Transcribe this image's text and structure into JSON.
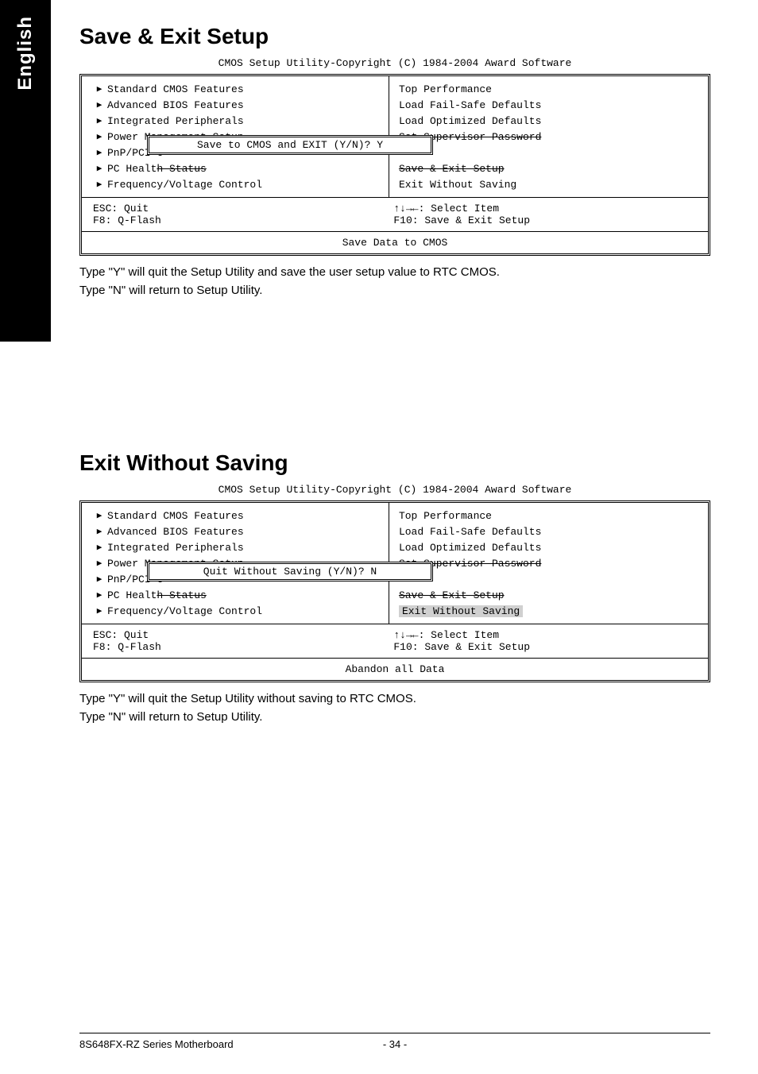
{
  "sidebar": {
    "label": "English"
  },
  "section1": {
    "title": "Save & Exit Setup",
    "bios_header": "CMOS Setup Utility-Copyright (C) 1984-2004 Award Software",
    "left_items": [
      "Standard CMOS Features",
      "Advanced BIOS Features",
      "Integrated Peripherals",
      "Power Management Setup",
      "PnP/PCI C",
      "PC Health Status",
      "Frequency/Voltage Control"
    ],
    "right_items": [
      "Top Performance",
      "Load Fail-Safe Defaults",
      "Load Optimized Defaults",
      "Set Supervisor Password",
      "",
      "Save & Exit Setup",
      "Exit Without Saving"
    ],
    "dialog": "Save to CMOS and EXIT (Y/N)? Y",
    "footer_left1": "ESC: Quit",
    "footer_left2": "F8: Q-Flash",
    "footer_right1": "↑↓→←: Select Item",
    "footer_right2": "F10: Save & Exit Setup",
    "caption": "Save Data to CMOS",
    "body1": "Type \"Y\" will quit the Setup Utility and save the user setup value to RTC CMOS.",
    "body2": "Type \"N\" will return to Setup Utility."
  },
  "section2": {
    "title": "Exit Without Saving",
    "bios_header": "CMOS Setup Utility-Copyright (C) 1984-2004 Award Software",
    "left_items": [
      "Standard CMOS Features",
      "Advanced BIOS Features",
      "Integrated Peripherals",
      "Power Management Setup",
      "PnP/PCI C",
      "PC Health Status",
      "Frequency/Voltage Control"
    ],
    "right_items": [
      "Top Performance",
      "Load Fail-Safe Defaults",
      "Load Optimized Defaults",
      "Set Supervisor Password",
      "",
      "Save & Exit Setup",
      "Exit Without Saving"
    ],
    "dialog": "Quit Without Saving (Y/N)? N",
    "footer_left1": "ESC: Quit",
    "footer_left2": "F8: Q-Flash",
    "footer_right1": "↑↓→←: Select Item",
    "footer_right2": "F10: Save & Exit Setup",
    "caption": "Abandon all Data",
    "body1": "Type \"Y\" will quit the Setup Utility without saving to RTC CMOS.",
    "body2": "Type \"N\" will return to Setup Utility."
  },
  "page_footer": {
    "left": "8S648FX-RZ Series Motherboard",
    "center": "- 34 -",
    "right": ""
  }
}
